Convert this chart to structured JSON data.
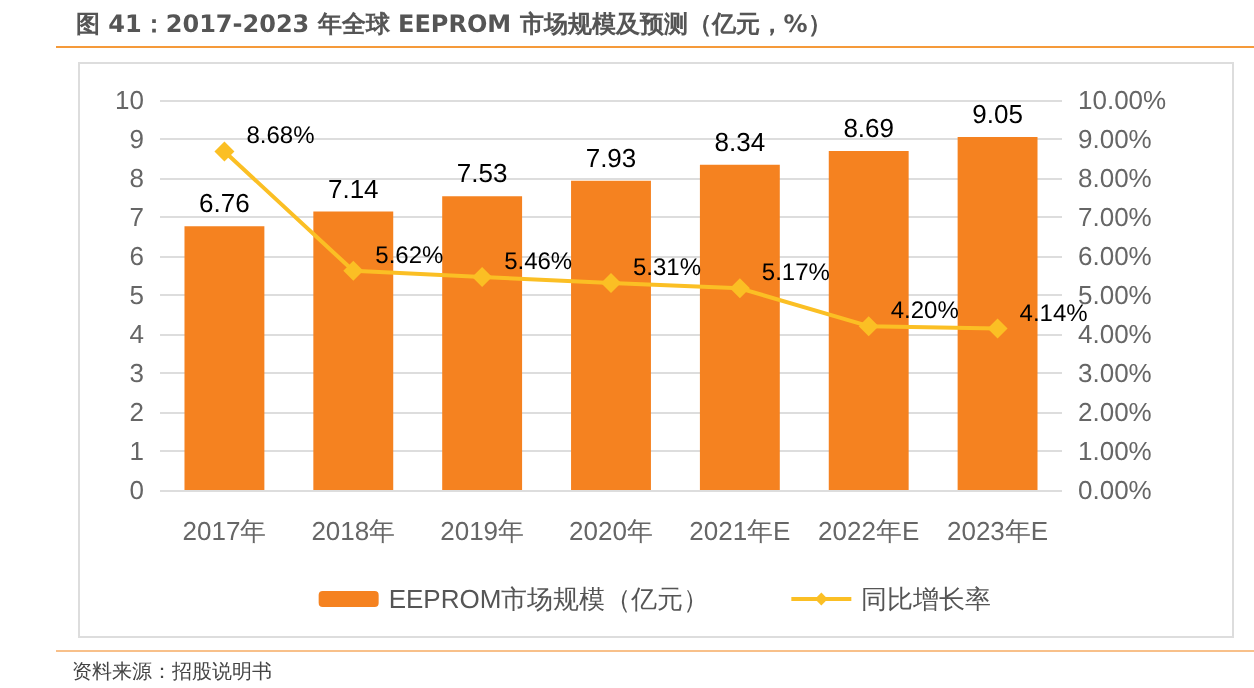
{
  "chart_data": {
    "type": "bar",
    "title": "图 41：2017-2023 年全球 EEPROM 市场规模及预测（亿元，%）",
    "categories": [
      "2017年",
      "2018年",
      "2019年",
      "2020年",
      "2021年E",
      "2022年E",
      "2023年E"
    ],
    "series": [
      {
        "name": "EEPROM市场规模（亿元）",
        "color": "#f58220",
        "values": [
          6.76,
          7.14,
          7.53,
          7.93,
          8.34,
          8.69,
          9.05
        ],
        "value_labels": [
          "6.76",
          "7.14",
          "7.53",
          "7.93",
          "8.34",
          "8.69",
          "9.05"
        ]
      },
      {
        "name": "同比增长率",
        "type": "line",
        "axis": "y2",
        "color": "#fbbf24",
        "marker": "diamond",
        "values": [
          8.68,
          5.62,
          5.46,
          5.31,
          5.17,
          4.2,
          4.14
        ],
        "value_labels": [
          "8.68%",
          "5.62%",
          "5.46%",
          "5.31%",
          "5.17%",
          "4.20%",
          "4.14%"
        ]
      }
    ],
    "ylim": [
      0,
      10
    ],
    "yticks": [
      0,
      1,
      2,
      3,
      4,
      5,
      6,
      7,
      8,
      9,
      10
    ],
    "y2lim": [
      0,
      10
    ],
    "y2ticks": [
      {
        "value": 0,
        "label": "0.00%"
      },
      {
        "value": 1,
        "label": "1.00%"
      },
      {
        "value": 2,
        "label": "2.00%"
      },
      {
        "value": 3,
        "label": "3.00%"
      },
      {
        "value": 4,
        "label": "4.00%"
      },
      {
        "value": 5,
        "label": "5.00%"
      },
      {
        "value": 6,
        "label": "6.00%"
      },
      {
        "value": 7,
        "label": "7.00%"
      },
      {
        "value": 8,
        "label": "8.00%"
      },
      {
        "value": 9,
        "label": "9.00%"
      },
      {
        "value": 10,
        "label": "10.00%"
      }
    ],
    "grid": "y",
    "legend": "bottom",
    "annotations": [
      "资料来源：招股说明书"
    ]
  }
}
